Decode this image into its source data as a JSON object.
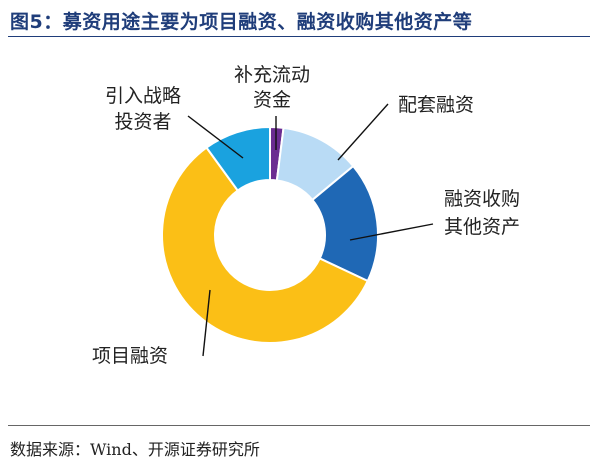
{
  "title": "图5：募资用途主要为项目融资、融资收购其他资产等",
  "source": "数据来源：Wind、开源证券研究所",
  "chart_data": {
    "type": "pie",
    "variant": "donut",
    "categories": [
      "补充流动资金",
      "配套融资",
      "融资收购其他资产",
      "项目融资",
      "引入战略投资者"
    ],
    "label_lines": [
      [
        "补充流动",
        "资金"
      ],
      [
        "配套融资"
      ],
      [
        "融资收购",
        "其他资产"
      ],
      [
        "项目融资"
      ],
      [
        "引入战略",
        "投资者"
      ]
    ],
    "values": [
      2,
      12,
      18,
      58,
      10
    ],
    "colors": [
      "#6B2C91",
      "#B9DBF5",
      "#1F68B5",
      "#FBBF16",
      "#1AA2DF"
    ],
    "start": "12 o'clock, clockwise",
    "legend": "none"
  }
}
